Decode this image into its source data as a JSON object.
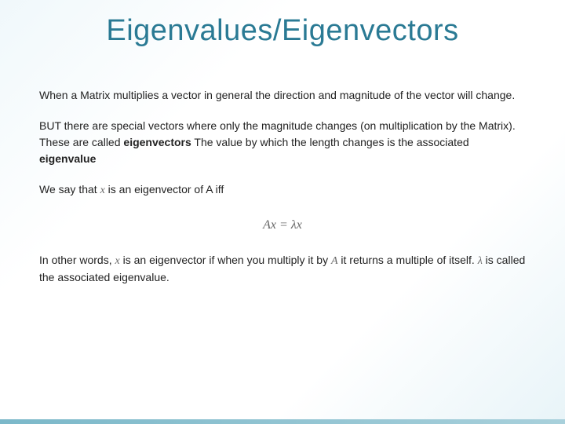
{
  "slide": {
    "title": "Eigenvalues/Eigenvectors",
    "title_color": "#2a7a94",
    "body_color": "#222222",
    "math_color": "#666666",
    "background_gradient": [
      "#f0f8fb",
      "#ffffff",
      "#e8f4f8"
    ],
    "bottom_bar_gradient": [
      "#7bb8c9",
      "#a8d0db"
    ],
    "title_fontsize": 38,
    "body_fontsize": 14,
    "para1": "When a Matrix multiplies a vector in general the direction and magnitude of the vector will change.",
    "para2_prefix": "BUT there are special vectors where only the magnitude changes (on multiplication by the Matrix). These are called ",
    "para2_bold1": "eigenvectors",
    "para2_mid": " The value by which the length changes is the associated ",
    "para2_bold2": "eigenvalue",
    "para3_prefix": "We say that ",
    "para3_var1": "x",
    "para3_suffix": " is an eigenvector of A iff",
    "equation": "Ax = λx",
    "para4_prefix": "In other words, ",
    "para4_var1": "x",
    "para4_mid1": " is an eigenvector if when you multiply it by ",
    "para4_var2": "A",
    "para4_mid2": " it returns a multiple of itself. ",
    "para4_var3": "λ",
    "para4_suffix": " is called the associated eigenvalue."
  }
}
